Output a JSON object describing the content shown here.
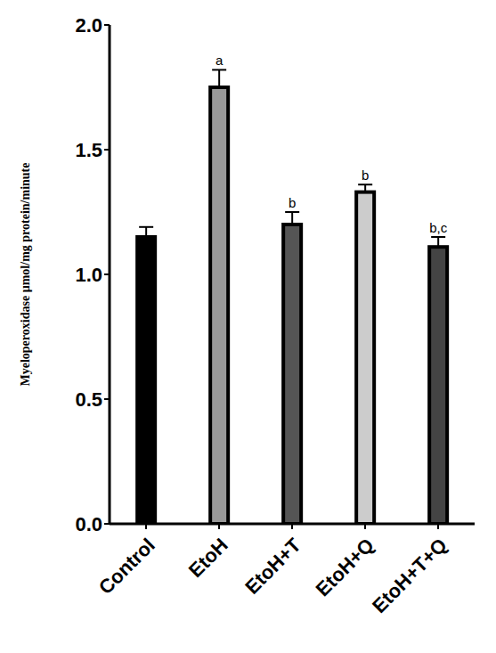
{
  "chart_data": {
    "type": "bar",
    "categories": [
      "Control",
      "EtoH",
      "EtoH+T",
      "EtoH+Q",
      "EtoH+T+Q"
    ],
    "values": [
      1.15,
      1.75,
      1.2,
      1.33,
      1.11
    ],
    "errors": [
      0.04,
      0.07,
      0.05,
      0.03,
      0.04
    ],
    "annotations": [
      null,
      "a",
      "b",
      "b",
      "b,c"
    ],
    "colors": [
      "#000000",
      "#999999",
      "#555555",
      "#cccccc",
      "#444444"
    ],
    "y_label": "Myeloperoxidase µmol/mg protein/minute",
    "ylim": [
      0,
      2
    ],
    "yticks": [
      {
        "value": 0,
        "label": "0.0"
      },
      0.5,
      {
        "value": 1,
        "label": "1.0"
      },
      1.5,
      {
        "value": 2,
        "label": "2.0"
      }
    ],
    "grid": false
  }
}
